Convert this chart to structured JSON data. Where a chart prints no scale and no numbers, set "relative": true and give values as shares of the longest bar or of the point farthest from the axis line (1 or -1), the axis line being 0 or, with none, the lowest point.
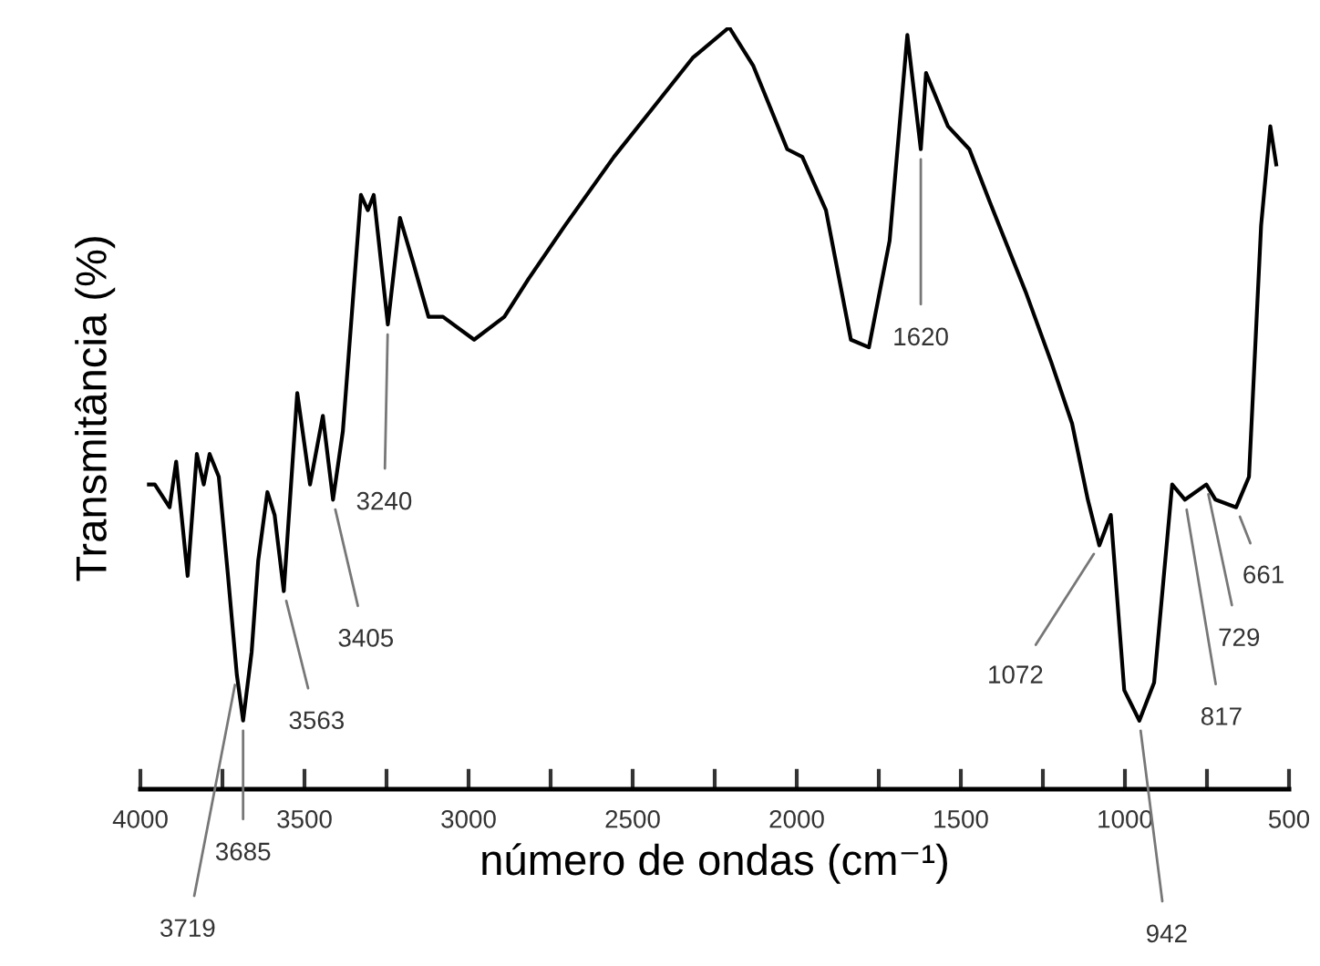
{
  "chart_data": {
    "type": "line",
    "relative": true,
    "xlabel": "número de ondas (cm⁻¹)",
    "ylabel": "Transmitância (%)",
    "x": [
      3974,
      3956,
      3911,
      3891,
      3856,
      3828,
      3807,
      3789,
      3761,
      3733,
      3706,
      3687,
      3661,
      3641,
      3613,
      3591,
      3563,
      3522,
      3483,
      3444,
      3413,
      3383,
      3328,
      3307,
      3289,
      3246,
      3209,
      3168,
      3122,
      3078,
      2983,
      2891,
      2817,
      2706,
      2557,
      2446,
      2317,
      2206,
      2133,
      2029,
      1983,
      1911,
      1835,
      1780,
      1717,
      1663,
      1622,
      1606,
      1539,
      1474,
      1411,
      1300,
      1224,
      1161,
      1113,
      1078,
      1043,
      1002,
      956,
      911,
      856,
      817,
      752,
      724,
      661,
      622,
      585,
      557,
      539
    ],
    "series": [
      {
        "color": "#000000",
        "values": [
          0.4,
          0.4,
          0.37,
          0.43,
          0.28,
          0.44,
          0.4,
          0.44,
          0.41,
          0.28,
          0.15,
          0.09,
          0.18,
          0.3,
          0.39,
          0.36,
          0.26,
          0.52,
          0.4,
          0.49,
          0.38,
          0.47,
          0.78,
          0.76,
          0.78,
          0.61,
          0.75,
          0.69,
          0.62,
          0.62,
          0.59,
          0.62,
          0.67,
          0.74,
          0.83,
          0.89,
          0.96,
          1.0,
          0.95,
          0.84,
          0.83,
          0.76,
          0.59,
          0.58,
          0.72,
          0.99,
          0.84,
          0.94,
          0.87,
          0.84,
          0.77,
          0.65,
          0.56,
          0.48,
          0.38,
          0.32,
          0.36,
          0.13,
          0.09,
          0.14,
          0.4,
          0.38,
          0.4,
          0.38,
          0.37,
          0.41,
          0.74,
          0.87,
          0.82
        ]
      }
    ],
    "xlim": [
      4000,
      500
    ],
    "xticks": [
      4000,
      {
        "value": 3750,
        "label": null
      },
      3500,
      {
        "value": 3250,
        "label": null
      },
      3000,
      {
        "value": 2750,
        "label": null
      },
      2500,
      {
        "value": 2250,
        "label": null
      },
      2000,
      {
        "value": 1750,
        "label": null
      },
      1500,
      {
        "value": 1250,
        "label": null
      },
      1000,
      {
        "value": 750,
        "label": null
      },
      500
    ],
    "annotations": [
      {
        "text": "3719",
        "x": 3706,
        "y": 0.15
      },
      {
        "text": "3685",
        "x": 3687,
        "y": 0.09
      },
      {
        "text": "3563",
        "x": 3563,
        "y": 0.26
      },
      {
        "text": "3405",
        "x": 3413,
        "y": 0.38
      },
      {
        "text": "3240",
        "x": 3246,
        "y": 0.61
      },
      {
        "text": "1620",
        "x": 1622,
        "y": 0.84
      },
      {
        "text": "1072",
        "x": 1078,
        "y": 0.32
      },
      {
        "text": "942",
        "x": 956,
        "y": 0.09
      },
      {
        "text": "817",
        "x": 817,
        "y": 0.38
      },
      {
        "text": "729",
        "x": 752,
        "y": 0.4
      },
      {
        "text": "661",
        "x": 661,
        "y": 0.37
      }
    ],
    "grid": false,
    "legend": false,
    "marker": "none",
    "line_style": "solid"
  }
}
